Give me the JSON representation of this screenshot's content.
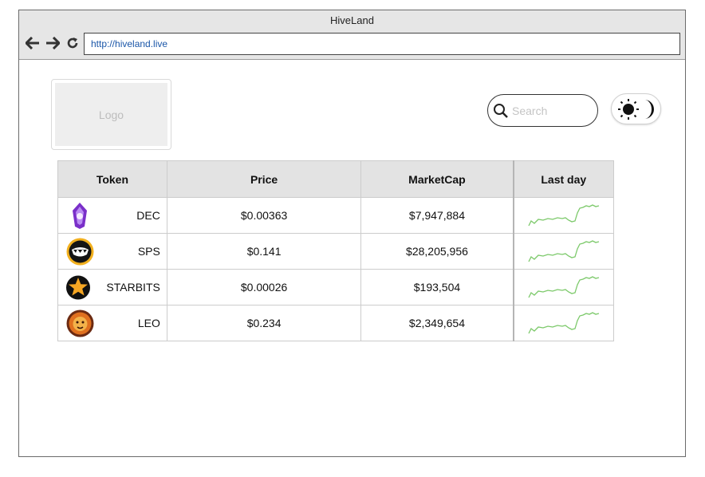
{
  "window": {
    "title": "HiveLand",
    "url": "http://hiveland.live"
  },
  "header": {
    "logo_text": "Logo",
    "search_placeholder": "Search"
  },
  "table": {
    "headers": {
      "token": "Token",
      "price": "Price",
      "marketcap": "MarketCap",
      "lastday": "Last day"
    },
    "rows": [
      {
        "token": "DEC",
        "price": "$0.00363",
        "marketcap": "$7,947,884",
        "icon": "dec-crystal-icon"
      },
      {
        "token": "SPS",
        "price": "$0.141",
        "marketcap": "$28,205,956",
        "icon": "sps-monster-icon"
      },
      {
        "token": "STARBITS",
        "price": "$0.00026",
        "marketcap": "$193,504",
        "icon": "starbits-star-icon"
      },
      {
        "token": "LEO",
        "price": "$0.234",
        "marketcap": "$2,349,654",
        "icon": "leo-lion-icon"
      }
    ]
  },
  "colors": {
    "spark": "#7cc96a",
    "url": "#1a56a8",
    "header_bg": "#e3e3e3"
  }
}
